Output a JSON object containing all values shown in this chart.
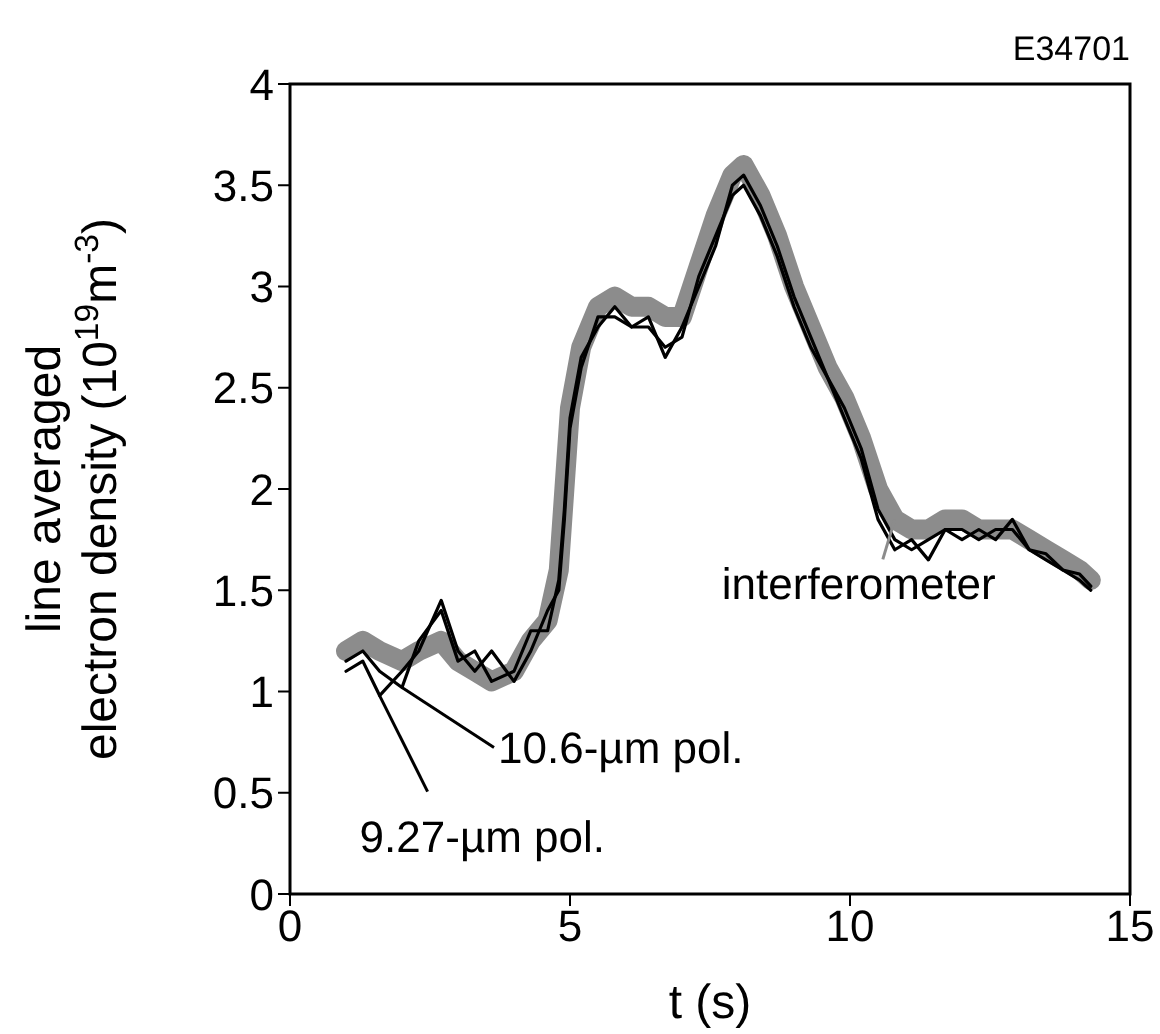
{
  "chart_data": {
    "type": "line",
    "xlabel": "t (s)",
    "ylabel": "line averaged\nelectron density (10$^{19}$m$^{-3}$)",
    "annotations": [
      "E34701"
    ],
    "x": [
      1,
      1.3,
      1.6,
      2,
      2.3,
      2.7,
      3,
      3.3,
      3.6,
      4,
      4.3,
      4.6,
      4.8,
      4.9,
      5,
      5.2,
      5.5,
      5.8,
      6.1,
      6.4,
      6.7,
      7,
      7.3,
      7.6,
      7.9,
      8.1,
      8.4,
      8.7,
      9,
      9.3,
      9.6,
      9.9,
      10.2,
      10.5,
      10.8,
      11.1,
      11.4,
      11.7,
      12,
      12.3,
      12.6,
      12.9,
      13.2,
      13.5,
      13.8,
      14.1,
      14.3
    ],
    "series": [
      {
        "name": "interferometer",
        "color": "#8c8c8c",
        "values": [
          1.2,
          1.25,
          1.2,
          1.15,
          1.2,
          1.25,
          1.15,
          1.1,
          1.05,
          1.1,
          1.25,
          1.35,
          1.6,
          2.0,
          2.4,
          2.7,
          2.9,
          2.95,
          2.9,
          2.9,
          2.85,
          2.85,
          3.1,
          3.35,
          3.55,
          3.6,
          3.45,
          3.25,
          3.0,
          2.8,
          2.6,
          2.45,
          2.25,
          2.0,
          1.85,
          1.8,
          1.8,
          1.85,
          1.85,
          1.8,
          1.8,
          1.8,
          1.75,
          1.7,
          1.65,
          1.6,
          1.55
        ]
      },
      {
        "name": "10.6-µm pol.",
        "color": "#000000",
        "values": [
          1.15,
          1.2,
          1.1,
          1.02,
          1.25,
          1.4,
          1.15,
          1.2,
          1.05,
          1.1,
          1.3,
          1.3,
          1.55,
          1.9,
          2.35,
          2.65,
          2.8,
          2.9,
          2.8,
          2.85,
          2.65,
          2.8,
          3.0,
          3.2,
          3.5,
          3.55,
          3.4,
          3.2,
          2.95,
          2.75,
          2.55,
          2.4,
          2.2,
          1.9,
          1.75,
          1.7,
          1.75,
          1.8,
          1.75,
          1.8,
          1.75,
          1.85,
          1.7,
          1.65,
          1.6,
          1.58,
          1.52
        ]
      },
      {
        "name": "9.27-µm pol.",
        "color": "#000000",
        "values": [
          1.1,
          1.15,
          0.98,
          1.1,
          1.2,
          1.45,
          1.2,
          1.1,
          1.2,
          1.05,
          1.2,
          1.4,
          1.5,
          1.85,
          2.3,
          2.6,
          2.85,
          2.85,
          2.8,
          2.8,
          2.7,
          2.75,
          3.05,
          3.25,
          3.45,
          3.5,
          3.35,
          3.15,
          2.9,
          2.7,
          2.55,
          2.35,
          2.15,
          1.85,
          1.7,
          1.75,
          1.65,
          1.8,
          1.8,
          1.75,
          1.8,
          1.8,
          1.7,
          1.68,
          1.6,
          1.55,
          1.5
        ]
      }
    ],
    "xlim": [
      0,
      15
    ],
    "xticks": [
      0,
      5,
      10,
      15
    ],
    "ylim": [
      0,
      4
    ],
    "yticks": [
      0,
      0.5,
      1,
      1.5,
      2,
      2.5,
      3,
      3.5,
      4
    ],
    "grid": false,
    "legend": "bottom",
    "marker": "none",
    "line_style": "solid"
  }
}
